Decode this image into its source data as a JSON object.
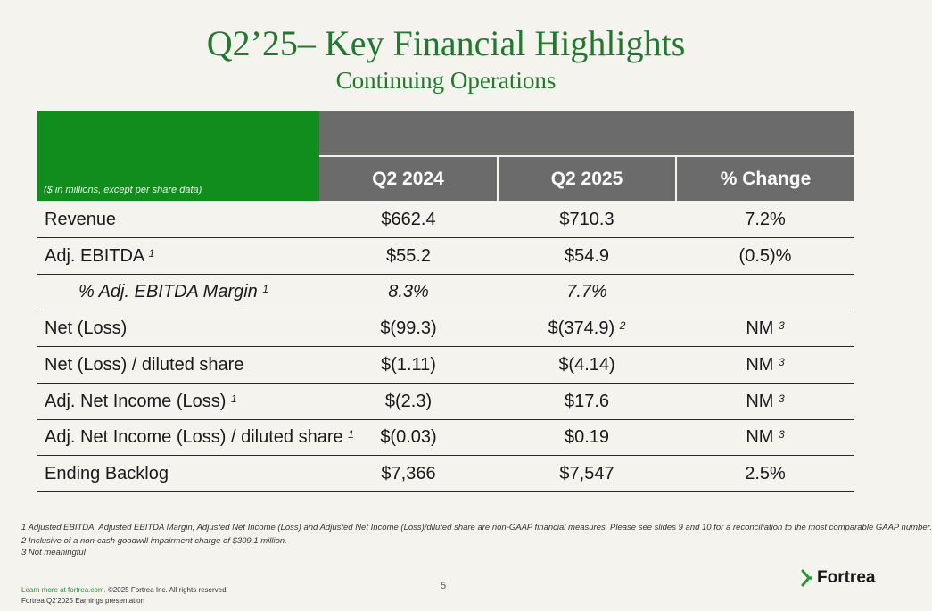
{
  "header": {
    "title": "Q2’25– Key Financial Highlights",
    "subtitle": "Continuing Operations"
  },
  "table": {
    "units_note": "($ in millions, except per share data)",
    "columns": [
      "Q2 2024",
      "Q2 2025",
      "% Change"
    ],
    "rows": [
      {
        "label": "Revenue",
        "label_sup": "",
        "q2_2024": "$662.4",
        "q2_2025": "$710.3",
        "q2_2025_sup": "",
        "change": "7.2%",
        "change_sup": ""
      },
      {
        "label": "Adj. EBITDA",
        "label_sup": "1",
        "q2_2024": "$55.2",
        "q2_2025": "$54.9",
        "q2_2025_sup": "",
        "change": "(0.5)%",
        "change_sup": ""
      },
      {
        "label": "% Adj. EBITDA Margin",
        "label_sup": "1",
        "q2_2024": "8.3%",
        "q2_2025": "7.7%",
        "q2_2025_sup": "",
        "change": "",
        "change_sup": ""
      },
      {
        "label": "Net (Loss)",
        "label_sup": "",
        "q2_2024": "$(99.3)",
        "q2_2025": "$(374.9)",
        "q2_2025_sup": "2",
        "change": "NM",
        "change_sup": "3"
      },
      {
        "label": "Net (Loss) / diluted share",
        "label_sup": "",
        "q2_2024": "$(1.11)",
        "q2_2025": "$(4.14)",
        "q2_2025_sup": "",
        "change": "NM",
        "change_sup": "3"
      },
      {
        "label": "Adj. Net Income (Loss)",
        "label_sup": "1",
        "q2_2024": "$(2.3)",
        "q2_2025": "$17.6",
        "q2_2025_sup": "",
        "change": "NM",
        "change_sup": "3"
      },
      {
        "label": "Adj. Net Income (Loss) / diluted share",
        "label_sup": "1",
        "q2_2024": "$(0.03)",
        "q2_2025": "$0.19",
        "q2_2025_sup": "",
        "change": "NM",
        "change_sup": "3"
      },
      {
        "label": "Ending Backlog",
        "label_sup": "",
        "q2_2024": "$7,366",
        "q2_2025": "$7,547",
        "q2_2025_sup": "",
        "change": "2.5%",
        "change_sup": ""
      }
    ]
  },
  "footnotes": [
    "1 Adjusted EBITDA, Adjusted EBITDA Margin, Adjusted Net Income (Loss) and Adjusted Net Income (Loss)/diluted share are non-GAAP financial measures.  Please see slides 9 and 10  for a reconciliation to the most comparable GAAP number.",
    "2 Inclusive of a non-cash goodwill impairment charge of $309.1 million.",
    "3 Not meaningful"
  ],
  "footer": {
    "page_number": "5",
    "link_text": "Learn more at fortrea.com.",
    "copyright": " ©2025 Fortrea Inc. All rights reserved.",
    "doc_name": "Fortrea Q2'2025 Earnings presentation",
    "logo_text": "Fortrea"
  },
  "colors": {
    "brand_green": "#118d1e",
    "title_green": "#1f7a2e",
    "header_gray": "#6b6b6b"
  },
  "icons": {
    "logo": "fortrea-chevron-icon"
  }
}
